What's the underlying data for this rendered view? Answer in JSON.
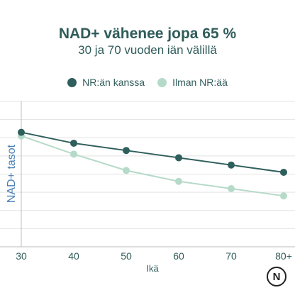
{
  "title": "NAD+ vähenee jopa 65 %",
  "subtitle": "30 ja 70 vuoden iän välillä",
  "legend": [
    {
      "label": "NR:än kanssa",
      "color": "#2f5f5c"
    },
    {
      "label": "Ilman NR:ää",
      "color": "#b6dac9"
    }
  ],
  "logo": {
    "glyph": "N"
  },
  "chart_data": {
    "type": "line",
    "title": "NAD+ vähenee jopa 65 %",
    "subtitle": "30 ja 70 vuoden iän välillä",
    "xlabel": "Ikä",
    "ylabel": "NAD+ tasot",
    "categories": [
      "30",
      "40",
      "50",
      "60",
      "70",
      "80+"
    ],
    "series": [
      {
        "name": "NR:än kanssa",
        "color": "#2f5f5c",
        "values": [
          63,
          57,
          53,
          49,
          45,
          41
        ]
      },
      {
        "name": "Ilman NR:ää",
        "color": "#b6dac9",
        "values": [
          61,
          51,
          42,
          36,
          32,
          28
        ]
      }
    ],
    "ylim": [
      0,
      80
    ],
    "grid": true,
    "legend_position": "top-center"
  }
}
